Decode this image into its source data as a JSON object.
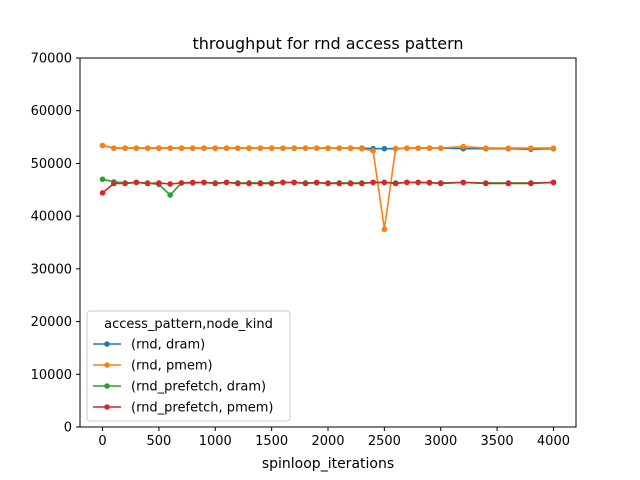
{
  "chart_data": {
    "type": "line",
    "title": "throughput for rnd access pattern",
    "xlabel": "spinloop_iterations",
    "ylabel": "",
    "xlim": [
      -200,
      4200
    ],
    "ylim": [
      0,
      70000
    ],
    "xticks": [
      0,
      500,
      1000,
      1500,
      2000,
      2500,
      3000,
      3500,
      4000
    ],
    "yticks": [
      0,
      10000,
      20000,
      30000,
      40000,
      50000,
      60000,
      70000
    ],
    "grid": false,
    "legend_title": "access_pattern,node_kind",
    "legend_position": "lower-left",
    "x": [
      0,
      100,
      200,
      300,
      400,
      500,
      600,
      700,
      800,
      900,
      1000,
      1100,
      1200,
      1300,
      1400,
      1500,
      1600,
      1700,
      1800,
      1900,
      2000,
      2100,
      2200,
      2300,
      2400,
      2500,
      2600,
      2700,
      2800,
      2900,
      3000,
      3200,
      3400,
      3600,
      3800,
      4000
    ],
    "series": [
      {
        "name": "(rnd, dram)",
        "color": "#1f77b4",
        "values": [
          53400,
          52900,
          52900,
          52900,
          52900,
          52900,
          52900,
          52900,
          52900,
          52900,
          52900,
          52900,
          52900,
          52900,
          52900,
          52900,
          52900,
          52900,
          52900,
          52900,
          52900,
          52900,
          52900,
          52900,
          52800,
          52800,
          52800,
          52900,
          52900,
          52900,
          52900,
          52800,
          52800,
          52800,
          52700,
          52800
        ]
      },
      {
        "name": "(rnd, pmem)",
        "color": "#ff7f0e",
        "values": [
          53400,
          52900,
          52900,
          52900,
          52900,
          52900,
          52900,
          52900,
          52900,
          52900,
          52900,
          52900,
          52900,
          52900,
          52900,
          52900,
          52900,
          52900,
          52900,
          52900,
          52900,
          52900,
          52900,
          52800,
          52400,
          37500,
          52800,
          52900,
          52900,
          52900,
          52900,
          53200,
          52900,
          52900,
          52900,
          52900
        ]
      },
      {
        "name": "(rnd_prefetch, dram)",
        "color": "#2ca02c",
        "values": [
          47000,
          46500,
          46300,
          46400,
          46300,
          46000,
          44000,
          46300,
          46300,
          46400,
          46300,
          46400,
          46300,
          46300,
          46300,
          46300,
          46400,
          46400,
          46300,
          46300,
          46300,
          46300,
          46300,
          46300,
          46400,
          46400,
          46300,
          46400,
          46400,
          46300,
          46300,
          46400,
          46300,
          46300,
          46300,
          46400
        ]
      },
      {
        "name": "(rnd_prefetch, pmem)",
        "color": "#d62728",
        "values": [
          44400,
          46200,
          46200,
          46400,
          46200,
          46300,
          46100,
          46300,
          46400,
          46400,
          46200,
          46400,
          46200,
          46200,
          46200,
          46200,
          46400,
          46400,
          46200,
          46400,
          46200,
          46200,
          46200,
          46200,
          46400,
          46400,
          46200,
          46400,
          46400,
          46400,
          46200,
          46400,
          46200,
          46200,
          46200,
          46400
        ]
      }
    ]
  }
}
